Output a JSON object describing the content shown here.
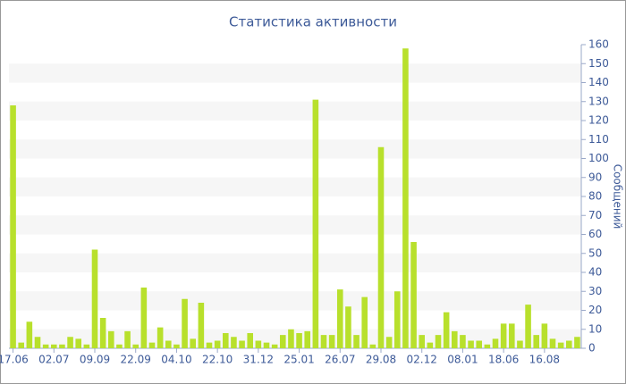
{
  "chart_data": {
    "type": "bar",
    "title": "Статистика активности",
    "y_axis_label": "Сообщений",
    "categories": [
      "17.06",
      null,
      null,
      null,
      null,
      "02.07",
      null,
      null,
      null,
      null,
      "09.09",
      null,
      null,
      null,
      null,
      "22.09",
      null,
      null,
      null,
      null,
      "04.10",
      null,
      null,
      null,
      null,
      "22.10",
      null,
      null,
      null,
      null,
      "31.12",
      null,
      null,
      null,
      null,
      "25.01",
      null,
      null,
      null,
      null,
      "26.07",
      null,
      null,
      null,
      null,
      "29.08",
      null,
      null,
      null,
      null,
      "02.12",
      null,
      null,
      null,
      null,
      "08.01",
      null,
      null,
      null,
      null,
      "18.06",
      null,
      null,
      null,
      null,
      "16.08",
      null,
      null,
      null,
      null
    ],
    "values": [
      128,
      3,
      14,
      6,
      2,
      2,
      2,
      6,
      5,
      2,
      52,
      16,
      9,
      2,
      9,
      2,
      32,
      3,
      11,
      4,
      2,
      26,
      5,
      24,
      3,
      4,
      8,
      6,
      4,
      8,
      4,
      3,
      2,
      7,
      10,
      8,
      9,
      131,
      7,
      7,
      31,
      22,
      7,
      27,
      2,
      106,
      6,
      30,
      158,
      56,
      7,
      3,
      7,
      19,
      9,
      7,
      4,
      4,
      2,
      5,
      13,
      13,
      4,
      23,
      7,
      13,
      5,
      3,
      4,
      6
    ],
    "color": "#b8e02c",
    "ylim": [
      0,
      160
    ],
    "yticks": [
      0,
      10,
      20,
      30,
      40,
      50,
      60,
      70,
      80,
      90,
      100,
      110,
      120,
      130,
      140,
      150,
      160
    ],
    "grid": "bands",
    "y_axis_side": "right"
  }
}
